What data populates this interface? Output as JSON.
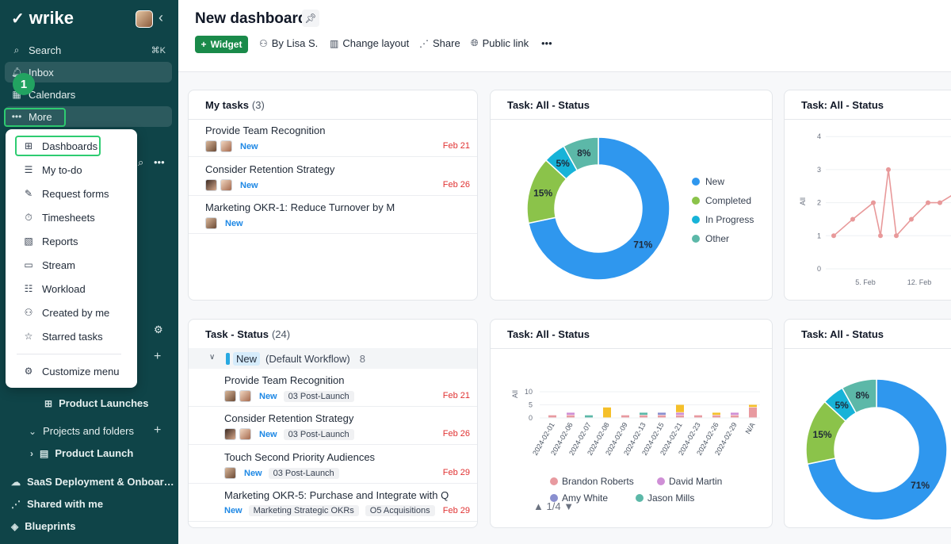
{
  "sidebar": {
    "logo": "wrike",
    "search": "Search",
    "search_shortcut": "⌘K",
    "inbox": "Inbox",
    "calendars": "Calendars",
    "more": "More",
    "step_badge": "1",
    "product_launches": "Product Launches",
    "projects_and_folders": "Projects and folders",
    "product_launch": "Product Launch",
    "saas": "SaaS Deployment & Onboar…",
    "shared": "Shared with me",
    "blueprints": "Blueprints"
  },
  "menu": {
    "items": [
      "Dashboards",
      "My to-do",
      "Request forms",
      "Timesheets",
      "Reports",
      "Stream",
      "Workload",
      "Created by me",
      "Starred tasks"
    ],
    "customize": "Customize menu"
  },
  "header": {
    "title": "New dashboard",
    "widget": "Widget",
    "by": "By Lisa S.",
    "change_layout": "Change layout",
    "share": "Share",
    "public_link": "Public link",
    "more": "•••"
  },
  "my_tasks": {
    "title": "My tasks",
    "count": "(3)",
    "tasks": [
      {
        "name": "Provide Team Recognition",
        "status": "New",
        "date": "Feb 21"
      },
      {
        "name": "Consider Retention Strategy",
        "status": "New",
        "date": "Feb 26"
      },
      {
        "name": "Marketing OKR-1: Reduce Turnover by M",
        "status": "New",
        "date": ""
      }
    ]
  },
  "task_status": {
    "title": "Task - Status",
    "count": "(24)",
    "workflow_status": "New",
    "workflow_name": "(Default Workflow)",
    "workflow_count": "8",
    "tasks": [
      {
        "name": "Provide Team Recognition",
        "status": "New",
        "tag": "03 Post-Launch",
        "tag2": "",
        "date": "Feb 21"
      },
      {
        "name": "Consider Retention Strategy",
        "status": "New",
        "tag": "03 Post-Launch",
        "tag2": "",
        "date": "Feb 26"
      },
      {
        "name": "Touch Second Priority Audiences",
        "status": "New",
        "tag": "03 Post-Launch",
        "tag2": "",
        "date": "Feb 29"
      },
      {
        "name": "Marketing OKR-5: Purchase and Integrate with Q",
        "status": "New",
        "tag": "Marketing Strategic OKRs",
        "tag2": "O5 Acquisitions",
        "date": "Feb 29"
      }
    ]
  },
  "widgets": {
    "donut_title": "Task: All - Status",
    "line_title": "Task: All - Status",
    "bar_title": "Task: All - Status",
    "donut2_title": "Task: All - Status",
    "pager": "1/4"
  },
  "colors": {
    "new": "#2f97ee",
    "completed": "#8bc34a",
    "in_progress": "#17b3d8",
    "other": "#5cb8a8",
    "line": "#e8999a"
  },
  "chart_data": [
    {
      "type": "pie",
      "title": "Task: All - Status",
      "labels": [
        "New",
        "Completed",
        "In Progress",
        "Other"
      ],
      "values": [
        71,
        15,
        5,
        8
      ],
      "value_labels": [
        "71%",
        "15%",
        "5%",
        "8%"
      ],
      "legend": "right"
    },
    {
      "type": "line",
      "title": "Task: All - Status",
      "ylabel": "All",
      "x_ticks": [
        "5. Feb",
        "12. Feb"
      ],
      "y_ticks": [
        "0",
        "1",
        "2",
        "3",
        "4"
      ],
      "ylim": [
        0,
        4
      ],
      "x": [
        1,
        2,
        3,
        4,
        5,
        6,
        7,
        8,
        9,
        10
      ],
      "values": [
        1,
        1.5,
        2,
        1,
        3,
        1,
        1.5,
        2,
        2,
        2.5
      ]
    },
    {
      "type": "bar",
      "title": "Task: All - Status",
      "ylabel": "All",
      "y_ticks": [
        "0",
        "5",
        "10"
      ],
      "ylim": [
        0,
        10
      ],
      "categories": [
        "2024-02-01",
        "2024-02-06",
        "2024-02-07",
        "2024-02-08",
        "2024-02-09",
        "2024-02-13",
        "2024-02-15",
        "2024-02-21",
        "2024-02-23",
        "2024-02-26",
        "2024-02-29",
        "N/A"
      ],
      "series": [
        {
          "name": "Brandon Roberts",
          "color": "#e89aa0",
          "values": [
            1,
            1,
            0,
            0,
            1,
            1,
            1,
            1,
            1,
            1,
            1,
            4
          ]
        },
        {
          "name": "David Martin",
          "color": "#cf8fd6",
          "values": [
            0,
            1,
            0,
            0,
            0,
            0,
            0,
            1,
            0,
            0,
            1,
            0
          ]
        },
        {
          "name": "Amy White",
          "color": "#8a8fcf",
          "values": [
            0,
            0,
            0,
            0,
            0,
            0,
            1,
            0,
            0,
            0,
            0,
            0
          ]
        },
        {
          "name": "Jason Mills",
          "color": "#5cb8a8",
          "values": [
            0,
            0,
            1,
            0,
            0,
            1,
            0,
            0,
            0,
            0,
            0,
            0
          ]
        },
        {
          "name": "",
          "color": "#f5c02a",
          "values": [
            0,
            0,
            0,
            4,
            0,
            0,
            0,
            3,
            0,
            1,
            0,
            1
          ]
        }
      ],
      "legend": "bottom"
    },
    {
      "type": "pie",
      "title": "Task: All - Status",
      "labels": [
        "New",
        "Completed",
        "In Progress",
        "Other"
      ],
      "values": [
        71,
        15,
        5,
        8
      ],
      "value_labels": [
        "71%",
        "15%",
        "5%",
        "8%"
      ]
    }
  ]
}
